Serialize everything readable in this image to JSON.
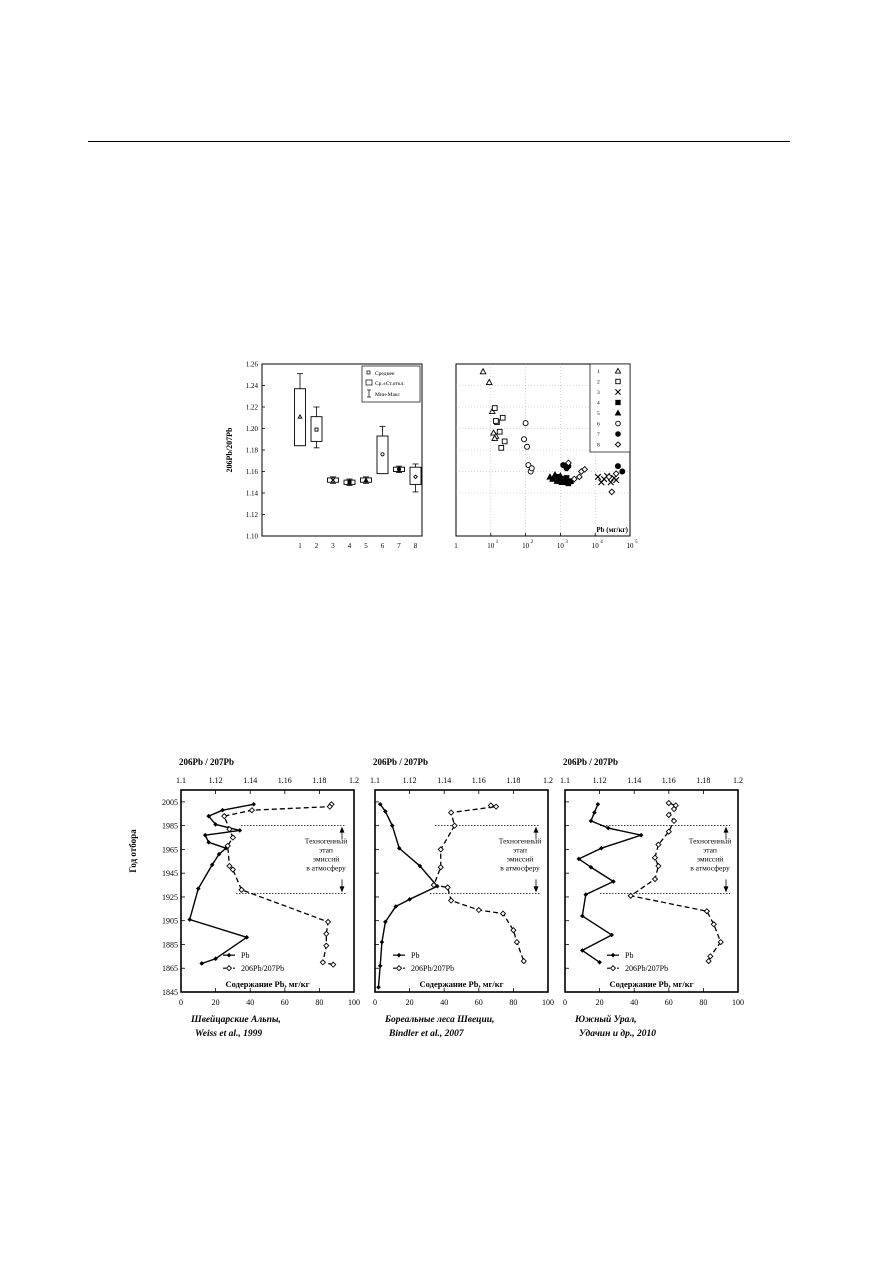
{
  "chart_data": [
    {
      "type": "box",
      "ylabel": "206Pb/207Pb",
      "ylim": [
        1.1,
        1.26
      ],
      "yticks": [
        "1.26",
        "1.24",
        "1.22",
        "1.20",
        "1.18",
        "1.16",
        "1.14",
        "1.12",
        "1.10"
      ],
      "categories": [
        "1",
        "2",
        "3",
        "4",
        "5",
        "6",
        "7",
        "8"
      ],
      "legend": [
        "Среднее",
        "Ср.±Ст.откл.",
        "Мин-Макс"
      ],
      "boxes": [
        {
          "cat": "1",
          "mean": 1.211,
          "q1": 1.184,
          "q3": 1.237,
          "min": 1.184,
          "max": 1.251,
          "marker": "triangle"
        },
        {
          "cat": "2",
          "mean": 1.199,
          "q1": 1.188,
          "q3": 1.211,
          "min": 1.182,
          "max": 1.22,
          "marker": "square"
        },
        {
          "cat": "3",
          "mean": 1.152,
          "q1": 1.15,
          "q3": 1.154,
          "min": 1.149,
          "max": 1.155,
          "marker": "x"
        },
        {
          "cat": "4",
          "mean": 1.15,
          "q1": 1.148,
          "q3": 1.152,
          "min": 1.147,
          "max": 1.153,
          "marker": "square-filled"
        },
        {
          "cat": "5",
          "mean": 1.152,
          "q1": 1.15,
          "q3": 1.154,
          "min": 1.149,
          "max": 1.155,
          "marker": "triangle-filled"
        },
        {
          "cat": "6",
          "mean": 1.176,
          "q1": 1.158,
          "q3": 1.193,
          "min": 1.158,
          "max": 1.202,
          "marker": "circle"
        },
        {
          "cat": "7",
          "mean": 1.162,
          "q1": 1.16,
          "q3": 1.164,
          "min": 1.159,
          "max": 1.165,
          "marker": "circle-filled"
        },
        {
          "cat": "8",
          "mean": 1.155,
          "q1": 1.148,
          "q3": 1.164,
          "min": 1.141,
          "max": 1.167,
          "marker": "diamond"
        }
      ]
    },
    {
      "type": "scatter",
      "xlabel": "Pb (мг/кг)",
      "xscale": "log",
      "xticks": [
        "1",
        "10",
        "10",
        "10",
        "10",
        "10"
      ],
      "xtick_exp": [
        "",
        "1",
        "2",
        "3",
        "4",
        "5"
      ],
      "ylim": [
        1.1,
        1.26
      ],
      "legend_position": "top-right",
      "series": [
        {
          "name": "1",
          "marker": "triangle",
          "points": [
            [
              6,
              1.253
            ],
            [
              9,
              1.243
            ],
            [
              11,
              1.216
            ],
            [
              12,
              1.196
            ],
            [
              14,
              1.193
            ],
            [
              13,
              1.191
            ]
          ]
        },
        {
          "name": "2",
          "marker": "square",
          "points": [
            [
              13,
              1.219
            ],
            [
              15,
              1.206
            ],
            [
              18,
              1.197
            ],
            [
              22,
              1.21
            ],
            [
              25,
              1.188
            ],
            [
              20,
              1.182
            ],
            [
              14,
              1.207
            ]
          ]
        },
        {
          "name": "3",
          "marker": "x",
          "points": [
            [
              12000,
              1.155
            ],
            [
              15000,
              1.15
            ],
            [
              18000,
              1.153
            ],
            [
              22000,
              1.156
            ],
            [
              28000,
              1.15
            ],
            [
              35000,
              1.154
            ],
            [
              40000,
              1.152
            ]
          ]
        },
        {
          "name": "4",
          "marker": "square-filled",
          "points": [
            [
              800,
              1.155
            ],
            [
              1000,
              1.152
            ],
            [
              1300,
              1.15
            ],
            [
              1500,
              1.154
            ],
            [
              1700,
              1.149
            ],
            [
              2000,
              1.151
            ],
            [
              1200,
              1.153
            ]
          ]
        },
        {
          "name": "5",
          "marker": "triangle-filled",
          "points": [
            [
              500,
              1.155
            ],
            [
              600,
              1.153
            ],
            [
              700,
              1.157
            ],
            [
              800,
              1.151
            ],
            [
              1000,
              1.156
            ],
            [
              1100,
              1.15
            ]
          ]
        },
        {
          "name": "6",
          "marker": "circle",
          "points": [
            [
              100,
              1.205
            ],
            [
              90,
              1.19
            ],
            [
              110,
              1.183
            ],
            [
              120,
              1.166
            ],
            [
              140,
              1.16
            ],
            [
              150,
              1.163
            ],
            [
              1500,
              1.165
            ]
          ]
        },
        {
          "name": "7",
          "marker": "circle-filled",
          "points": [
            [
              1200,
              1.166
            ],
            [
              1500,
              1.163
            ],
            [
              1700,
              1.165
            ],
            [
              45000,
              1.165
            ],
            [
              60000,
              1.16
            ]
          ]
        },
        {
          "name": "8",
          "marker": "diamond",
          "points": [
            [
              1700,
              1.168
            ],
            [
              2500,
              1.153
            ],
            [
              3500,
              1.155
            ],
            [
              4000,
              1.16
            ],
            [
              5000,
              1.162
            ],
            [
              25000,
              1.155
            ],
            [
              30000,
              1.141
            ],
            [
              40000,
              1.158
            ]
          ]
        }
      ]
    },
    {
      "type": "line",
      "ylabel": "Год отбора",
      "top_axis_label": "206Pb / 207Pb",
      "top_ticks": [
        "1.1",
        "1.12",
        "1.14",
        "1.16",
        "1.18",
        "1.2"
      ],
      "bottom_ticks": [
        "0",
        "20",
        "40",
        "60",
        "80",
        "100"
      ],
      "y_ticks": [
        "2005",
        "1985",
        "1965",
        "1945",
        "1925",
        "1905",
        "1885",
        "1865",
        "1845"
      ],
      "bottom_axis_label": "Содержание Pb, мг/кг",
      "annotation": [
        "Техногенный",
        "этап",
        "эмиссий",
        "в атмосферу"
      ],
      "legend": [
        "Pb",
        "206Pb/207Pb"
      ],
      "caption_line1": "Швейцарские Альпы,",
      "caption_line2": "Weiss et al., 1999",
      "series": [
        {
          "name": "Pb",
          "x_units": "мг/кг",
          "points": [
            [
              42,
              2003
            ],
            [
              24,
              1998
            ],
            [
              16,
              1993
            ],
            [
              20,
              1986
            ],
            [
              34,
              1981
            ],
            [
              14,
              1977
            ],
            [
              16,
              1971
            ],
            [
              26,
              1966
            ],
            [
              22,
              1961
            ],
            [
              18,
              1952
            ],
            [
              10,
              1932
            ],
            [
              5,
              1906
            ],
            [
              38,
              1891
            ],
            [
              20,
              1873
            ],
            [
              12,
              1869
            ]
          ]
        },
        {
          "name": "206Pb/207Pb",
          "x_units": "ratio",
          "points": [
            [
              1.187,
              2003
            ],
            [
              1.186,
              2001
            ],
            [
              1.141,
              1998
            ],
            [
              1.125,
              1993
            ],
            [
              1.128,
              1982
            ],
            [
              1.13,
              1975
            ],
            [
              1.127,
              1968
            ],
            [
              1.128,
              1951
            ],
            [
              1.13,
              1948
            ],
            [
              1.135,
              1931
            ],
            [
              1.185,
              1904
            ],
            [
              1.184,
              1894
            ],
            [
              1.184,
              1884
            ],
            [
              1.182,
              1870
            ],
            [
              1.188,
              1868
            ]
          ]
        }
      ]
    },
    {
      "type": "line",
      "top_axis_label": "206Pb / 207Pb",
      "top_ticks": [
        "1.1",
        "1.12",
        "1.14",
        "1.16",
        "1.18",
        "1.2"
      ],
      "bottom_ticks": [
        "0",
        "20",
        "40",
        "60",
        "80",
        "100"
      ],
      "bottom_axis_label": "Содержание Pb, мг/кг",
      "annotation": [
        "Техногенный",
        "этап",
        "эмиссий",
        "в атмосферу"
      ],
      "legend": [
        "Pb",
        "206Pb/207Pb"
      ],
      "caption_line1": "Бореальные леса Швеции,",
      "caption_line2": "Bindler et al., 2007",
      "series": [
        {
          "name": "Pb",
          "x_units": "мг/кг",
          "points": [
            [
              3,
              2003
            ],
            [
              6,
              1997
            ],
            [
              10,
              1985
            ],
            [
              14,
              1966
            ],
            [
              26,
              1951
            ],
            [
              36,
              1934
            ],
            [
              20,
              1923
            ],
            [
              12,
              1917
            ],
            [
              6,
              1904
            ],
            [
              4,
              1887
            ],
            [
              3,
              1867
            ],
            [
              2,
              1849
            ]
          ]
        },
        {
          "name": "206Pb/207Pb",
          "x_units": "ratio",
          "points": [
            [
              1.167,
              2002
            ],
            [
              1.17,
              2001
            ],
            [
              1.144,
              1996
            ],
            [
              1.146,
              1985
            ],
            [
              1.138,
              1965
            ],
            [
              1.138,
              1950
            ],
            [
              1.134,
              1935
            ],
            [
              1.142,
              1933
            ],
            [
              1.144,
              1922
            ],
            [
              1.16,
              1914
            ],
            [
              1.174,
              1911
            ],
            [
              1.18,
              1897
            ],
            [
              1.182,
              1887
            ],
            [
              1.186,
              1871
            ]
          ]
        }
      ]
    },
    {
      "type": "line",
      "top_axis_label": "206Pb / 207Pb",
      "top_ticks": [
        "1.1",
        "1.12",
        "1.14",
        "1.16",
        "1.18",
        "1.2"
      ],
      "bottom_ticks": [
        "0",
        "20",
        "40",
        "60",
        "80",
        "100"
      ],
      "bottom_axis_label": "Содержание Pb, мг/кг",
      "annotation": [
        "Техногенный",
        "этап",
        "эмиссий",
        "в атмосферу"
      ],
      "legend": [
        "Pb",
        "206Pb/207Pb"
      ],
      "caption_line1": "Южный Урал,",
      "caption_line2": "Удачин и др., 2010",
      "series": [
        {
          "name": "Pb",
          "x_units": "мг/кг",
          "points": [
            [
              19,
              2003
            ],
            [
              17,
              1996
            ],
            [
              15,
              1989
            ],
            [
              25,
              1983
            ],
            [
              44,
              1977
            ],
            [
              21,
              1966
            ],
            [
              8,
              1957
            ],
            [
              15,
              1950
            ],
            [
              28,
              1938
            ],
            [
              12,
              1927
            ],
            [
              10,
              1909
            ],
            [
              27,
              1893
            ],
            [
              10,
              1880
            ],
            [
              20,
              1870
            ]
          ]
        },
        {
          "name": "206Pb/207Pb",
          "x_units": "ratio",
          "points": [
            [
              1.16,
              2004
            ],
            [
              1.164,
              2002
            ],
            [
              1.163,
              1999
            ],
            [
              1.16,
              1994
            ],
            [
              1.163,
              1989
            ],
            [
              1.16,
              1980
            ],
            [
              1.154,
              1969
            ],
            [
              1.152,
              1958
            ],
            [
              1.154,
              1951
            ],
            [
              1.152,
              1940
            ],
            [
              1.138,
              1926
            ],
            [
              1.182,
              1913
            ],
            [
              1.186,
              1902
            ],
            [
              1.19,
              1887
            ],
            [
              1.184,
              1875
            ],
            [
              1.183,
              1871
            ]
          ]
        }
      ]
    }
  ]
}
